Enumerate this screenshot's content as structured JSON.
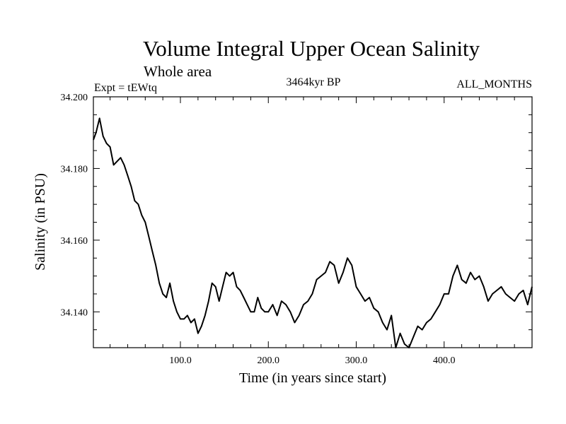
{
  "chart_data": {
    "type": "line",
    "title": "Volume Integral Upper Ocean Salinity",
    "subtitle": "Whole area",
    "annotations": {
      "experiment": "Expt = tEWtq",
      "period": "3464kyr BP",
      "months": "ALL_MONTHS"
    },
    "xlabel": "Time (in years since start)",
    "ylabel": "Salinity (in PSU)",
    "xlim": [
      1,
      500
    ],
    "ylim": [
      34.13,
      34.2
    ],
    "x_ticks": [
      100,
      200,
      300,
      400
    ],
    "x_tick_labels": [
      "100.0",
      "200.0",
      "300.0",
      "400.0"
    ],
    "y_ticks": [
      34.14,
      34.16,
      34.18,
      34.2
    ],
    "y_tick_labels": [
      "34.140",
      "34.160",
      "34.180",
      "34.200"
    ],
    "series": [
      {
        "name": "Salinity",
        "color": "#000000",
        "x": [
          1,
          4,
          8,
          12,
          16,
          20,
          24,
          28,
          32,
          36,
          40,
          44,
          48,
          52,
          56,
          60,
          64,
          68,
          72,
          76,
          80,
          84,
          88,
          92,
          96,
          100,
          104,
          108,
          112,
          116,
          120,
          124,
          128,
          132,
          136,
          140,
          144,
          148,
          152,
          156,
          160,
          164,
          168,
          172,
          176,
          180,
          184,
          188,
          192,
          196,
          200,
          205,
          210,
          215,
          220,
          225,
          230,
          235,
          240,
          245,
          250,
          255,
          260,
          265,
          270,
          275,
          280,
          285,
          290,
          295,
          300,
          305,
          310,
          315,
          320,
          325,
          330,
          335,
          340,
          345,
          350,
          355,
          360,
          365,
          370,
          375,
          380,
          385,
          390,
          395,
          400,
          405,
          410,
          415,
          420,
          425,
          430,
          435,
          440,
          445,
          450,
          455,
          460,
          465,
          470,
          475,
          480,
          485,
          490,
          495,
          500
        ],
        "y": [
          34.188,
          34.19,
          34.194,
          34.189,
          34.187,
          34.186,
          34.181,
          34.182,
          34.183,
          34.181,
          34.178,
          34.175,
          34.171,
          34.17,
          34.167,
          34.165,
          34.161,
          34.157,
          34.153,
          34.148,
          34.145,
          34.144,
          34.148,
          34.143,
          34.14,
          34.138,
          34.138,
          34.139,
          34.137,
          34.138,
          34.134,
          34.136,
          34.139,
          34.143,
          34.148,
          34.147,
          34.143,
          34.147,
          34.151,
          34.15,
          34.151,
          34.147,
          34.146,
          34.144,
          34.142,
          34.14,
          34.14,
          34.144,
          34.141,
          34.14,
          34.14,
          34.142,
          34.139,
          34.143,
          34.142,
          34.14,
          34.137,
          34.139,
          34.142,
          34.143,
          34.145,
          34.149,
          34.15,
          34.151,
          34.154,
          34.153,
          34.148,
          34.151,
          34.155,
          34.153,
          34.147,
          34.145,
          34.143,
          34.144,
          34.141,
          34.14,
          34.137,
          34.135,
          34.139,
          34.13,
          34.134,
          34.131,
          34.13,
          34.133,
          34.136,
          34.135,
          34.137,
          34.138,
          34.14,
          34.142,
          34.145,
          34.145,
          34.15,
          34.153,
          34.149,
          34.148,
          34.151,
          34.149,
          34.15,
          34.147,
          34.143,
          34.145,
          34.146,
          34.147,
          34.145,
          34.144,
          34.143,
          34.145,
          34.146,
          34.142,
          34.147
        ]
      }
    ]
  }
}
